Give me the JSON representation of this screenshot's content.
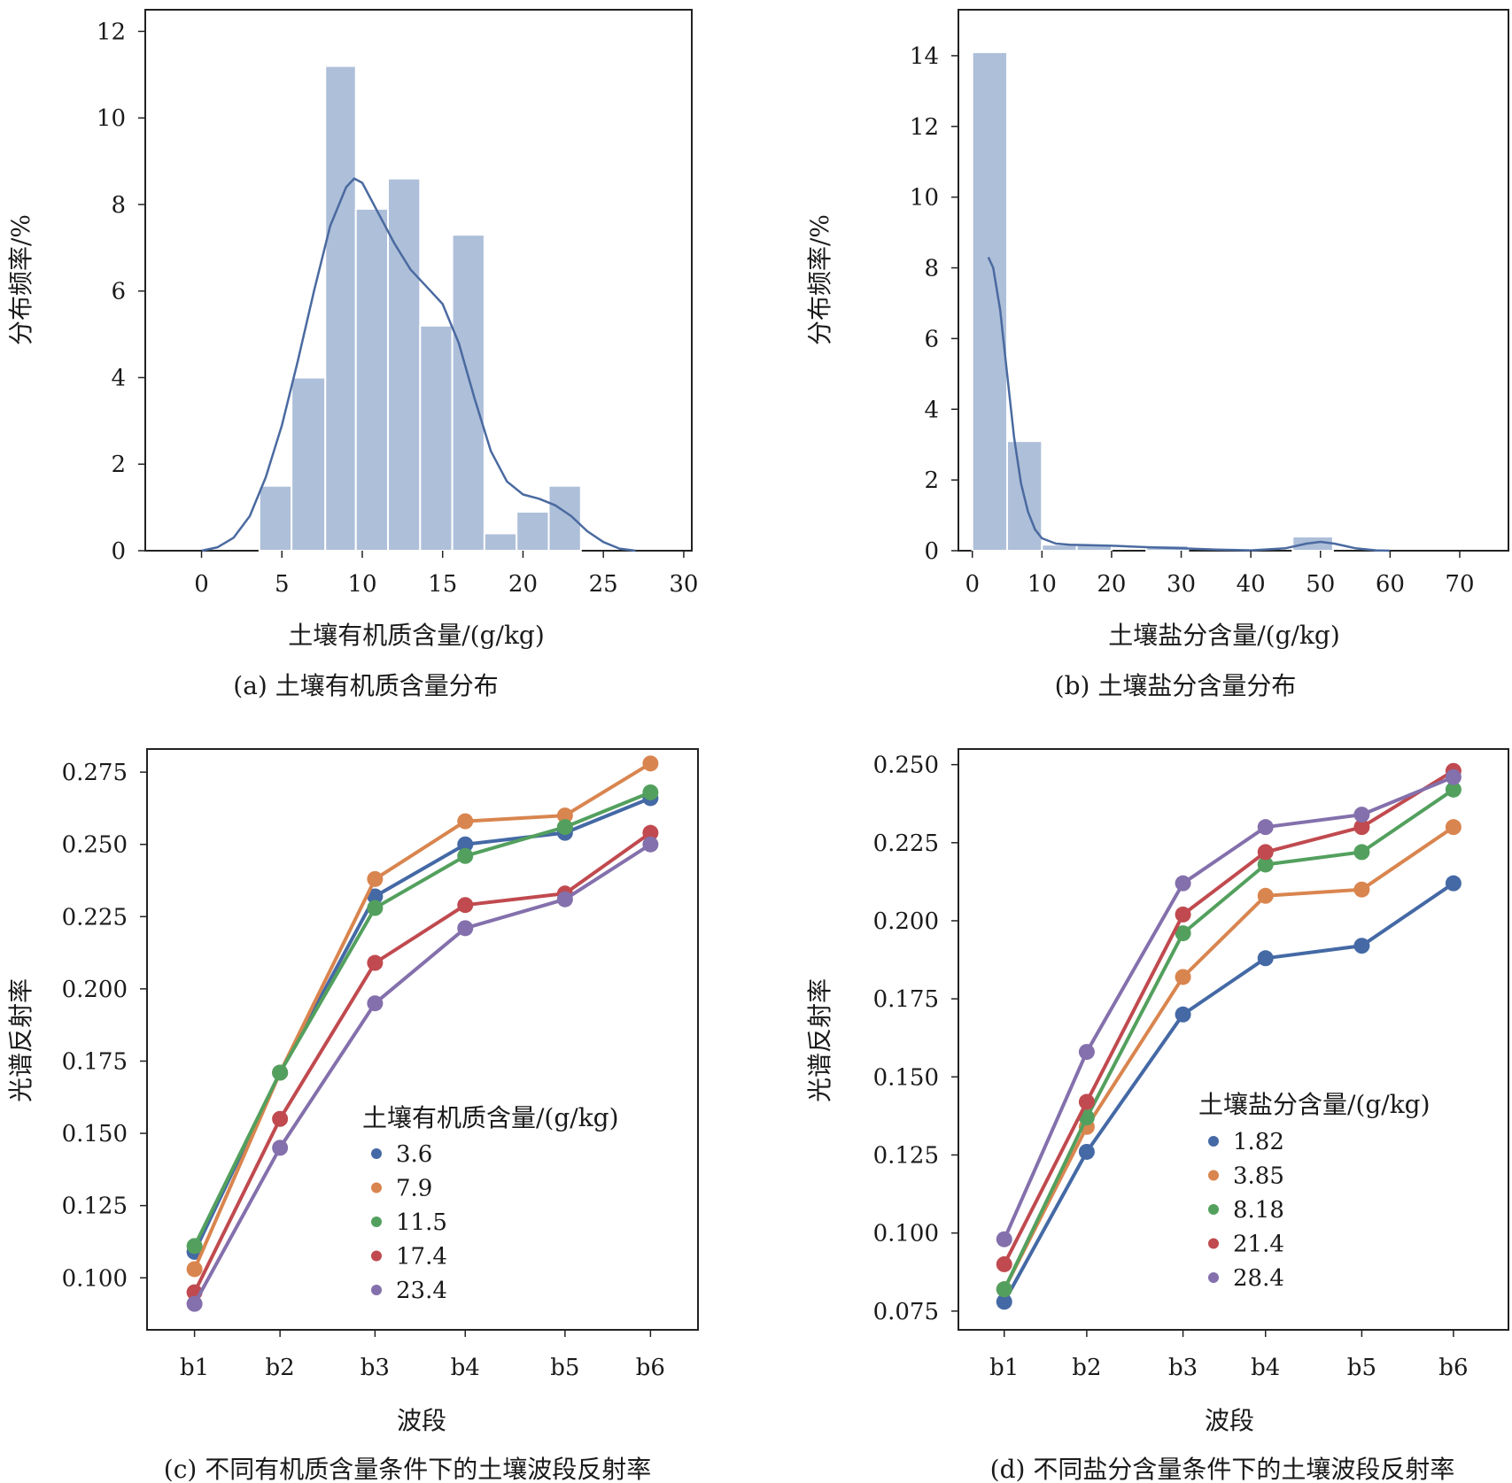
{
  "colors": {
    "bar": "#aebfd9",
    "bar_edge": "#ffffff",
    "kde": "#4a6aa0",
    "axis": "#222222",
    "series": [
      "#4469a5",
      "#d9854f",
      "#53a05e",
      "#c04a4f",
      "#8370ac"
    ]
  },
  "chart_data": [
    {
      "id": "a",
      "type": "bar",
      "kind": "histogram",
      "caption": "(a) 土壤有机质含量分布",
      "xlabel": "土壤有机质含量/(g/kg)",
      "ylabel": "分布频率/%",
      "xlim": [
        -3.5,
        30.5
      ],
      "ylim": [
        0,
        12.5
      ],
      "xticks": [
        0,
        5,
        10,
        15,
        20,
        25,
        30
      ],
      "yticks": [
        0,
        2,
        4,
        6,
        8,
        10,
        12
      ],
      "bins": [
        {
          "x0": 3.6,
          "x1": 5.6,
          "value": 1.5
        },
        {
          "x0": 5.6,
          "x1": 7.7,
          "value": 4.0
        },
        {
          "x0": 7.7,
          "x1": 9.6,
          "value": 11.2
        },
        {
          "x0": 9.6,
          "x1": 11.6,
          "value": 7.9
        },
        {
          "x0": 11.6,
          "x1": 13.6,
          "value": 8.6
        },
        {
          "x0": 13.6,
          "x1": 15.6,
          "value": 5.2
        },
        {
          "x0": 15.6,
          "x1": 17.6,
          "value": 7.3
        },
        {
          "x0": 17.6,
          "x1": 19.6,
          "value": 0.4
        },
        {
          "x0": 19.6,
          "x1": 21.6,
          "value": 0.9
        },
        {
          "x0": 21.6,
          "x1": 23.6,
          "value": 1.5
        }
      ],
      "kde": {
        "x": [
          0,
          1,
          2,
          3,
          4,
          5,
          6,
          7,
          8,
          9,
          9.5,
          10,
          11,
          12,
          13,
          14,
          15,
          16,
          17,
          18,
          19,
          20,
          21,
          22,
          23,
          24,
          25,
          26,
          27
        ],
        "y": [
          0,
          0.08,
          0.3,
          0.8,
          1.7,
          2.9,
          4.4,
          6.0,
          7.5,
          8.4,
          8.6,
          8.5,
          7.8,
          7.1,
          6.5,
          6.1,
          5.7,
          4.8,
          3.5,
          2.3,
          1.6,
          1.3,
          1.2,
          1.05,
          0.8,
          0.45,
          0.2,
          0.05,
          0
        ]
      }
    },
    {
      "id": "b",
      "type": "bar",
      "kind": "histogram",
      "caption": "(b) 土壤盐分含量分布",
      "xlabel": "土壤盐分含量/(g/kg)",
      "ylabel": "分布频率/%",
      "xlim": [
        -2,
        77
      ],
      "ylim": [
        0,
        15.3
      ],
      "xticks": [
        0,
        10,
        20,
        30,
        40,
        50,
        60,
        70
      ],
      "yticks": [
        0,
        2,
        4,
        6,
        8,
        10,
        12,
        14
      ],
      "bins": [
        {
          "x0": 0,
          "x1": 5,
          "value": 14.1
        },
        {
          "x0": 5,
          "x1": 10,
          "value": 3.1
        },
        {
          "x0": 10,
          "x1": 15,
          "value": 0.17
        },
        {
          "x0": 15,
          "x1": 20,
          "value": 0.17
        },
        {
          "x0": 25,
          "x1": 31,
          "value": 0.15
        },
        {
          "x0": 46,
          "x1": 51.8,
          "value": 0.4
        }
      ],
      "kde": {
        "x": [
          2.3,
          3,
          4,
          5,
          6,
          7,
          8,
          9,
          10,
          12,
          14,
          16,
          20,
          25,
          30,
          35,
          40,
          45,
          48,
          50,
          52,
          55,
          58,
          60
        ],
        "y": [
          8.3,
          8.0,
          6.8,
          5.0,
          3.2,
          1.9,
          1.1,
          0.6,
          0.35,
          0.2,
          0.17,
          0.16,
          0.14,
          0.1,
          0.07,
          0.03,
          0.01,
          0.07,
          0.2,
          0.25,
          0.2,
          0.07,
          0.01,
          0
        ]
      }
    },
    {
      "id": "c",
      "type": "line",
      "caption": "(c) 不同有机质含量条件下的土壤波段反射率",
      "xlabel": "波段",
      "ylabel": "光谱反射率",
      "categories": [
        "b1",
        "b2",
        "b3",
        "b4",
        "b5",
        "b6"
      ],
      "category_x": [
        0.5,
        1.4,
        2.4,
        3.35,
        4.4,
        5.3
      ],
      "xlim": [
        0,
        5.8
      ],
      "ylim": [
        0.082,
        0.283
      ],
      "yticks": [
        0.1,
        0.125,
        0.15,
        0.175,
        0.2,
        0.225,
        0.25,
        0.275
      ],
      "ytick_labels": [
        "0.100",
        "0.125",
        "0.150",
        "0.175",
        "0.200",
        "0.225",
        "0.250",
        "0.275"
      ],
      "legend_title": "土壤有机质含量/(g/kg)",
      "series": [
        {
          "name": "3.6",
          "values": [
            0.109,
            0.171,
            0.232,
            0.25,
            0.254,
            0.266
          ]
        },
        {
          "name": "7.9",
          "values": [
            0.103,
            0.171,
            0.238,
            0.258,
            0.26,
            0.278
          ]
        },
        {
          "name": "11.5",
          "values": [
            0.111,
            0.171,
            0.228,
            0.246,
            0.256,
            0.268
          ]
        },
        {
          "name": "17.4",
          "values": [
            0.095,
            0.155,
            0.209,
            0.229,
            0.233,
            0.254
          ]
        },
        {
          "name": "23.4",
          "values": [
            0.091,
            0.145,
            0.195,
            0.221,
            0.231,
            0.25
          ]
        }
      ]
    },
    {
      "id": "d",
      "type": "line",
      "caption": "(d) 不同盐分含量条件下的土壤波段反射率",
      "xlabel": "波段",
      "ylabel": "光谱反射率",
      "categories": [
        "b1",
        "b2",
        "b3",
        "b4",
        "b5",
        "b6"
      ],
      "category_x": [
        0.5,
        1.4,
        2.45,
        3.35,
        4.4,
        5.4
      ],
      "xlim": [
        0,
        6.0
      ],
      "ylim": [
        0.069,
        0.255
      ],
      "yticks": [
        0.075,
        0.1,
        0.125,
        0.15,
        0.175,
        0.2,
        0.225,
        0.25
      ],
      "ytick_labels": [
        "0.075",
        "0.100",
        "0.125",
        "0.150",
        "0.175",
        "0.200",
        "0.225",
        "0.250"
      ],
      "legend_title": "土壤盐分含量/(g/kg)",
      "series": [
        {
          "name": "1.82",
          "values": [
            0.078,
            0.126,
            0.17,
            0.188,
            0.192,
            0.212
          ]
        },
        {
          "name": "3.85",
          "values": [
            0.082,
            0.134,
            0.182,
            0.208,
            0.21,
            0.23
          ]
        },
        {
          "name": "8.18",
          "values": [
            0.082,
            0.137,
            0.196,
            0.218,
            0.222,
            0.242
          ]
        },
        {
          "name": "21.4",
          "values": [
            0.09,
            0.142,
            0.202,
            0.222,
            0.23,
            0.248
          ]
        },
        {
          "name": "28.4",
          "values": [
            0.098,
            0.158,
            0.212,
            0.23,
            0.234,
            0.246
          ]
        }
      ]
    }
  ]
}
